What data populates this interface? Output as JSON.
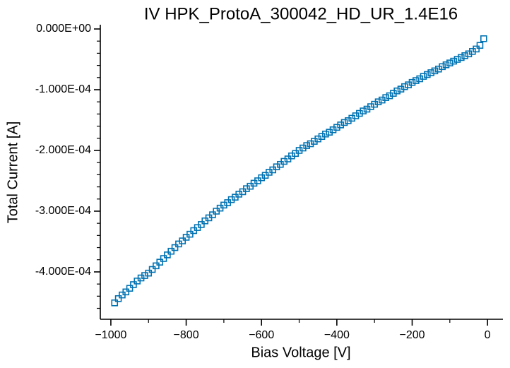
{
  "chart_data": {
    "type": "scatter",
    "title": "IV HPK_ProtoA_300042_HD_UR_1.4E16",
    "x_label": "Bias Voltage [V]",
    "y_label": "Total Current [A]",
    "color": "#0072b2",
    "marker": "square-open",
    "xlim": [
      -1028,
      41
    ],
    "ylim": [
      -0.000478,
      7e-06
    ],
    "xticks": [
      {
        "value": -1000,
        "label": "−1000"
      },
      {
        "value": -800,
        "label": "−800"
      },
      {
        "value": -600,
        "label": "−600"
      },
      {
        "value": -400,
        "label": "−400"
      },
      {
        "value": -200,
        "label": "−200"
      },
      0
    ],
    "xminor_ticks": [
      -900,
      -700,
      -500,
      -300,
      -100
    ],
    "yticks": [
      {
        "value": 0,
        "label": "0.000E+00"
      },
      {
        "value": -0.0001,
        "label": "-1.000E-04"
      },
      {
        "value": -0.0002,
        "label": "-2.000E-04"
      },
      {
        "value": -0.0003,
        "label": "-3.000E-04"
      },
      {
        "value": -0.0004,
        "label": "-4.000E-04"
      }
    ],
    "yminor_ticks": [
      -2e-05,
      -4e-05,
      -6e-05,
      -8e-05,
      -0.00012,
      -0.00014,
      -0.00016,
      -0.00018,
      -0.00022,
      -0.00024,
      -0.00026,
      -0.00028,
      -0.00032,
      -0.00034,
      -0.00036,
      -0.00038,
      -0.00042,
      -0.00044,
      -0.00046
    ],
    "x": [
      -990,
      -980,
      -970,
      -960,
      -950,
      -940,
      -930,
      -920,
      -910,
      -900,
      -890,
      -880,
      -870,
      -860,
      -850,
      -840,
      -830,
      -820,
      -810,
      -800,
      -790,
      -780,
      -770,
      -760,
      -750,
      -740,
      -730,
      -720,
      -710,
      -700,
      -690,
      -680,
      -670,
      -660,
      -650,
      -640,
      -630,
      -620,
      -610,
      -600,
      -590,
      -580,
      -570,
      -560,
      -550,
      -540,
      -530,
      -520,
      -510,
      -500,
      -490,
      -480,
      -470,
      -460,
      -450,
      -440,
      -430,
      -420,
      -410,
      -400,
      -390,
      -380,
      -370,
      -360,
      -350,
      -340,
      -330,
      -320,
      -310,
      -300,
      -290,
      -280,
      -270,
      -260,
      -250,
      -240,
      -230,
      -220,
      -210,
      -200,
      -190,
      -180,
      -170,
      -160,
      -150,
      -140,
      -130,
      -120,
      -110,
      -100,
      -90,
      -80,
      -70,
      -60,
      -50,
      -40,
      -30,
      -20,
      -10
    ],
    "values": [
      -0.000451,
      -0.000444,
      -0.000438,
      -0.000433,
      -0.000427,
      -0.000421,
      -0.000415,
      -0.00041,
      -0.000406,
      -0.000402,
      -0.000396,
      -0.00039,
      -0.000384,
      -0.000378,
      -0.000372,
      -0.000366,
      -0.00036,
      -0.000354,
      -0.000349,
      -0.000343,
      -0.000338,
      -0.000332,
      -0.000327,
      -0.000322,
      -0.000316,
      -0.000311,
      -0.000306,
      -0.0003,
      -0.000295,
      -0.00029,
      -0.000286,
      -0.000281,
      -0.000277,
      -0.000272,
      -0.000268,
      -0.000263,
      -0.000259,
      -0.000254,
      -0.00025,
      -0.000245,
      -0.000241,
      -0.000236,
      -0.000232,
      -0.000227,
      -0.000223,
      -0.000218,
      -0.000214,
      -0.000209,
      -0.000205,
      -0.0002,
      -0.000196,
      -0.000192,
      -0.000189,
      -0.000185,
      -0.000181,
      -0.000177,
      -0.000173,
      -0.00017,
      -0.000166,
      -0.000162,
      -0.000158,
      -0.000154,
      -0.000151,
      -0.000147,
      -0.000143,
      -0.000139,
      -0.000135,
      -0.000132,
      -0.000128,
      -0.000124,
      -0.00012,
      -0.000117,
      -0.000113,
      -0.00011,
      -0.000106,
      -0.000102,
      -9.9e-05,
      -9.5e-05,
      -9.2e-05,
      -8.8e-05,
      -8.5e-05,
      -8.2e-05,
      -7.8e-05,
      -7.5e-05,
      -7.2e-05,
      -6.9e-05,
      -6.6e-05,
      -6.2e-05,
      -5.9e-05,
      -5.6e-05,
      -5.3e-05,
      -5e-05,
      -4.7e-05,
      -4.4e-05,
      -4.1e-05,
      -3.7e-05,
      -3.3e-05,
      -2.7e-05,
      -1.6e-05
    ]
  }
}
